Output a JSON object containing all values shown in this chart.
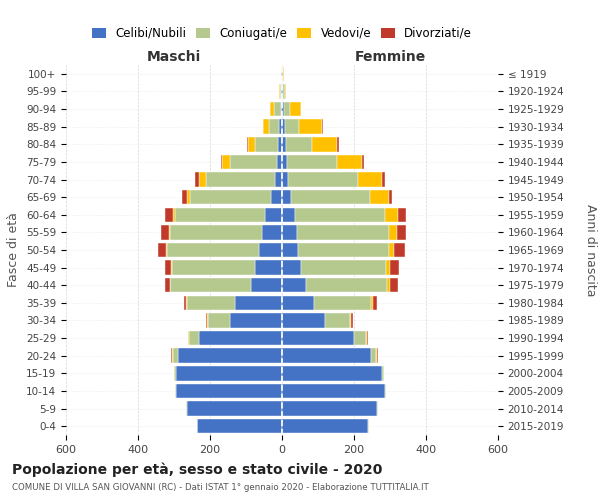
{
  "age_groups": [
    "0-4",
    "5-9",
    "10-14",
    "15-19",
    "20-24",
    "25-29",
    "30-34",
    "35-39",
    "40-44",
    "45-49",
    "50-54",
    "55-59",
    "60-64",
    "65-69",
    "70-74",
    "75-79",
    "80-84",
    "85-89",
    "90-94",
    "95-99",
    "100+"
  ],
  "birth_years": [
    "2015-2019",
    "2010-2014",
    "2005-2009",
    "2000-2004",
    "1995-1999",
    "1990-1994",
    "1985-1989",
    "1980-1984",
    "1975-1979",
    "1970-1974",
    "1965-1969",
    "1960-1964",
    "1955-1959",
    "1950-1954",
    "1945-1949",
    "1940-1944",
    "1935-1939",
    "1930-1934",
    "1925-1929",
    "1920-1924",
    "≤ 1919"
  ],
  "maschi": {
    "celibi": [
      235,
      265,
      295,
      295,
      290,
      230,
      145,
      130,
      85,
      75,
      65,
      55,
      48,
      30,
      20,
      15,
      10,
      8,
      4,
      2,
      2
    ],
    "coniugati": [
      2,
      2,
      3,
      5,
      14,
      28,
      60,
      135,
      225,
      230,
      255,
      255,
      250,
      225,
      190,
      130,
      65,
      28,
      18,
      3,
      2
    ],
    "vedovi": [
      0,
      0,
      0,
      0,
      2,
      2,
      2,
      2,
      2,
      2,
      2,
      3,
      5,
      8,
      20,
      22,
      20,
      16,
      12,
      2,
      0
    ],
    "divorziati": [
      0,
      0,
      0,
      0,
      2,
      2,
      5,
      5,
      12,
      18,
      22,
      22,
      22,
      15,
      12,
      2,
      2,
      2,
      0,
      0,
      0
    ]
  },
  "femmine": {
    "nubili": [
      240,
      265,
      285,
      278,
      248,
      200,
      120,
      90,
      68,
      52,
      45,
      42,
      35,
      25,
      18,
      15,
      12,
      8,
      5,
      2,
      2
    ],
    "coniugate": [
      2,
      2,
      3,
      5,
      14,
      33,
      68,
      158,
      225,
      238,
      252,
      255,
      250,
      220,
      192,
      138,
      72,
      38,
      18,
      5,
      2
    ],
    "vedove": [
      0,
      0,
      0,
      0,
      2,
      2,
      3,
      5,
      8,
      10,
      14,
      22,
      38,
      52,
      68,
      70,
      68,
      65,
      30,
      5,
      2
    ],
    "divorziate": [
      0,
      0,
      0,
      0,
      2,
      3,
      5,
      10,
      20,
      25,
      30,
      25,
      22,
      8,
      8,
      5,
      5,
      2,
      0,
      0,
      0
    ]
  },
  "colors": {
    "celibi_nubili": "#4472c4",
    "coniugati": "#b5c98e",
    "vedovi": "#ffc000",
    "divorziati": "#c0392b"
  },
  "xlim": 600,
  "title": "Popolazione per età, sesso e stato civile - 2020",
  "subtitle": "COMUNE DI VILLA SAN GIOVANNI (RC) - Dati ISTAT 1° gennaio 2020 - Elaborazione TUTTITALIA.IT",
  "ylabel_left": "Fasce di età",
  "ylabel_right": "Anni di nascita",
  "xlabel_maschi": "Maschi",
  "xlabel_femmine": "Femmine",
  "legend_labels": [
    "Celibi/Nubili",
    "Coniugati/e",
    "Vedovi/e",
    "Divorziati/e"
  ],
  "bg_color": "#ffffff",
  "grid_color": "#cccccc"
}
